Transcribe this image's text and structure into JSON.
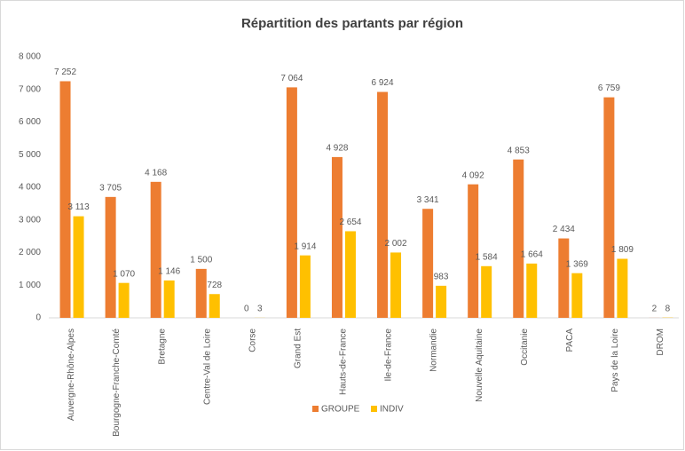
{
  "chart_data": {
    "type": "bar",
    "title": "Répartition des partants par région",
    "categories": [
      "Auvergne-Rhône-Alpes",
      "Bourgogne-Franche-Comté",
      "Bretagne",
      "Centre-Val de Loire",
      "Corse",
      "Grand Est",
      "Hauts-de-France",
      "Ile-de-France",
      "Normandie",
      "Nouvelle Aquitaine",
      "Occitanie",
      "PACA",
      "Pays de la Loire",
      "DROM"
    ],
    "series": [
      {
        "name": "GROUPE",
        "color": "#ED7D31",
        "values": [
          7252,
          3705,
          4168,
          1500,
          0,
          7064,
          4928,
          6924,
          3341,
          4092,
          4853,
          2434,
          6759,
          2
        ],
        "value_labels": [
          "7 252",
          "3 705",
          "4 168",
          "1 500",
          "0",
          "7 064",
          "4 928",
          "6 924",
          "3 341",
          "4 092",
          "4 853",
          "2 434",
          "6 759",
          "2"
        ]
      },
      {
        "name": "INDIV",
        "color": "#FFC000",
        "values": [
          3113,
          1070,
          1146,
          728,
          3,
          1914,
          2654,
          2002,
          983,
          1584,
          1664,
          1369,
          1809,
          8
        ],
        "value_labels": [
          "3 113",
          "1 070",
          "1 146",
          "728",
          "3",
          "1 914",
          "2 654",
          "2 002",
          "983",
          "1 584",
          "1 664",
          "1 369",
          "1 809",
          "8"
        ]
      }
    ],
    "ylim": [
      0,
      8000
    ],
    "yticks": [
      0,
      {
        "value": 1000,
        "label": "1 000"
      },
      {
        "value": 2000,
        "label": "2 000"
      },
      {
        "value": 3000,
        "label": "3 000"
      },
      {
        "value": 4000,
        "label": "4 000"
      },
      {
        "value": 5000,
        "label": "5 000"
      },
      {
        "value": 6000,
        "label": "6 000"
      },
      {
        "value": 7000,
        "label": "7 000"
      },
      {
        "value": 8000,
        "label": "8 000"
      }
    ],
    "legend": "bottom"
  }
}
